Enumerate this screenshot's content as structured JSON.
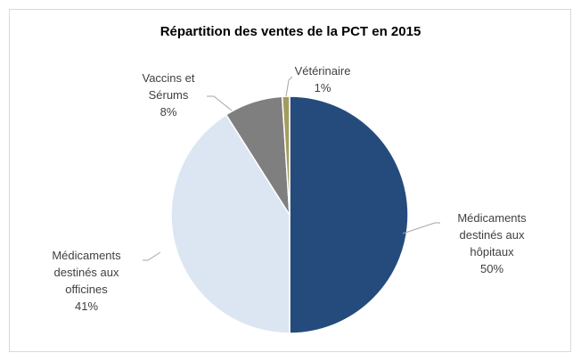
{
  "chart_data": {
    "type": "pie",
    "title": "Répartition des ventes de la PCT en 2015",
    "categories": [
      "Médicaments destinés aux hôpitaux",
      "Médicaments destinés aux officines",
      "Vaccins et Sérums",
      "Vétérinaire"
    ],
    "values": [
      50,
      41,
      8,
      1
    ],
    "value_labels": [
      "50%",
      "41%",
      "8%",
      "1%"
    ],
    "colors": [
      "#254b7d",
      "#dce6f2",
      "#7f7f7f",
      "#a39c5f"
    ]
  }
}
